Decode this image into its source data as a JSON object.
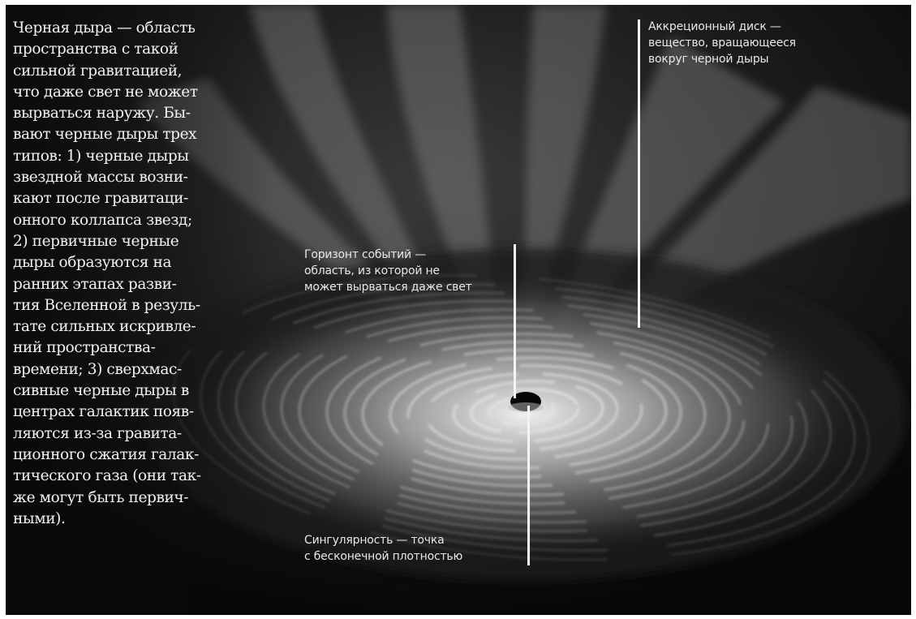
{
  "main_text": "Черная дыра — область\nпространства с такой\nсильной гравитацией,\nчто даже свет не может\nвырваться наружу. Бы-\nвают черные дыры трех\nтипов: 1) черные дыры\nзвездной массы возни-\nкают после гравитаци-\nонного коллапса звезд;\n2) первичные черные\nдыры образуются на\nранних этапах разви-\nтия Вселенной в резуль-\nтате сильных искривле-\nний пространства-\nвремени; 3) сверхмас-\nсивные черные дыры в\nцентрах галактик появ-\nляются из-за гравита-\nционного сжатия галак-\nтического газа (они так-\nже могут быть первич-\nными).",
  "labels": {
    "accretion_disk": "Аккреционный диск —\nвещество, вращающееся\nвокруг черной дыры",
    "event_horizon": "Горизонт событий —\nобласть, из которой не\nможет вырваться даже свет",
    "singularity": "Сингулярность — точка\nс бесконечной плотностью"
  },
  "colors": {
    "background": "#0d0d0d",
    "disk": "#cfcfcf",
    "text": "#f2f2f2",
    "callout_line": "#f4f4f4"
  }
}
